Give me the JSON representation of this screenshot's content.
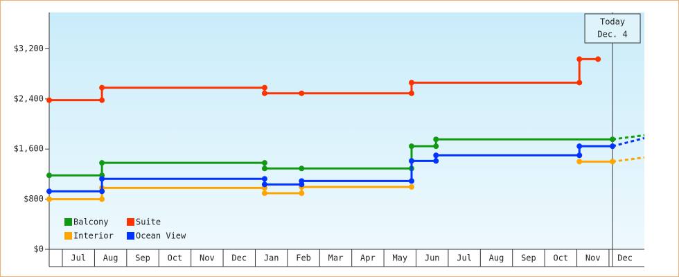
{
  "chart_data": {
    "type": "line",
    "step": true,
    "xlim": [
      -0.41,
      18.1
    ],
    "ylim": [
      0,
      3780
    ],
    "yticks": [
      {
        "value": 0,
        "label": "$0"
      },
      {
        "value": 800,
        "label": "$800"
      },
      {
        "value": 1600,
        "label": "$1,600"
      },
      {
        "value": 2400,
        "label": "$2,400"
      },
      {
        "value": 3200,
        "label": "$3,200"
      }
    ],
    "xticks": [
      {
        "value": 0.5,
        "label": "Jul"
      },
      {
        "value": 1.5,
        "label": "Aug"
      },
      {
        "value": 2.5,
        "label": "Sep"
      },
      {
        "value": 3.5,
        "label": "Oct"
      },
      {
        "value": 4.5,
        "label": "Nov"
      },
      {
        "value": 5.5,
        "label": "Dec"
      },
      {
        "value": 6.5,
        "label": "Jan"
      },
      {
        "value": 7.5,
        "label": "Feb"
      },
      {
        "value": 8.5,
        "label": "Mar"
      },
      {
        "value": 9.5,
        "label": "Apr"
      },
      {
        "value": 10.5,
        "label": "May"
      },
      {
        "value": 11.5,
        "label": "Jun"
      },
      {
        "value": 12.5,
        "label": "Jul"
      },
      {
        "value": 13.5,
        "label": "Aug"
      },
      {
        "value": 14.5,
        "label": "Sep"
      },
      {
        "value": 15.5,
        "label": "Oct"
      },
      {
        "value": 16.5,
        "label": "Nov"
      },
      {
        "value": 17.5,
        "label": "Dec"
      }
    ],
    "annotation": {
      "lines": [
        "Today",
        "Dec. 4"
      ],
      "x": 17.11
    },
    "series": [
      {
        "name": "Balcony",
        "color": "#119911",
        "x": [
          -0.41,
          1.23,
          1.23,
          6.29,
          6.29,
          7.44,
          10.86,
          10.86,
          11.62,
          11.62,
          17.11
        ],
        "values": [
          1180,
          1180,
          1380,
          1380,
          1290,
          1290,
          1290,
          1645,
          1645,
          1755,
          1755
        ],
        "projection": {
          "x": [
            17.11,
            18.1
          ],
          "values": [
            1755,
            1820
          ]
        }
      },
      {
        "name": "Suite",
        "color": "#ff3300",
        "x": [
          -0.41,
          1.23,
          1.23,
          6.29,
          6.29,
          7.44,
          10.86,
          10.86,
          16.08,
          16.08,
          16.66
        ],
        "values": [
          2380,
          2380,
          2580,
          2580,
          2490,
          2490,
          2490,
          2660,
          2660,
          3035,
          3035
        ]
      },
      {
        "name": "Interior",
        "color": "#ffa500",
        "x": [
          -0.41,
          1.23,
          1.23,
          6.29,
          6.29,
          7.44,
          7.44,
          10.86,
          13.0,
          16.08,
          17.11
        ],
        "values": [
          800,
          800,
          980,
          980,
          895,
          895,
          995,
          995,
          null,
          1400,
          1400
        ],
        "projection": {
          "x": [
            17.11,
            18.1
          ],
          "values": [
            1400,
            1465
          ]
        }
      },
      {
        "name": "Ocean View",
        "color": "#0033ff",
        "x": [
          -0.41,
          1.23,
          1.23,
          6.29,
          6.29,
          7.44,
          7.44,
          10.86,
          10.86,
          11.62,
          11.62,
          16.08,
          16.08,
          17.11
        ],
        "values": [
          925,
          925,
          1125,
          1125,
          1035,
          1035,
          1090,
          1090,
          1410,
          1410,
          1500,
          1500,
          1645,
          1645
        ],
        "projection": {
          "x": [
            17.11,
            18.1
          ],
          "values": [
            1645,
            1775
          ]
        }
      }
    ]
  }
}
